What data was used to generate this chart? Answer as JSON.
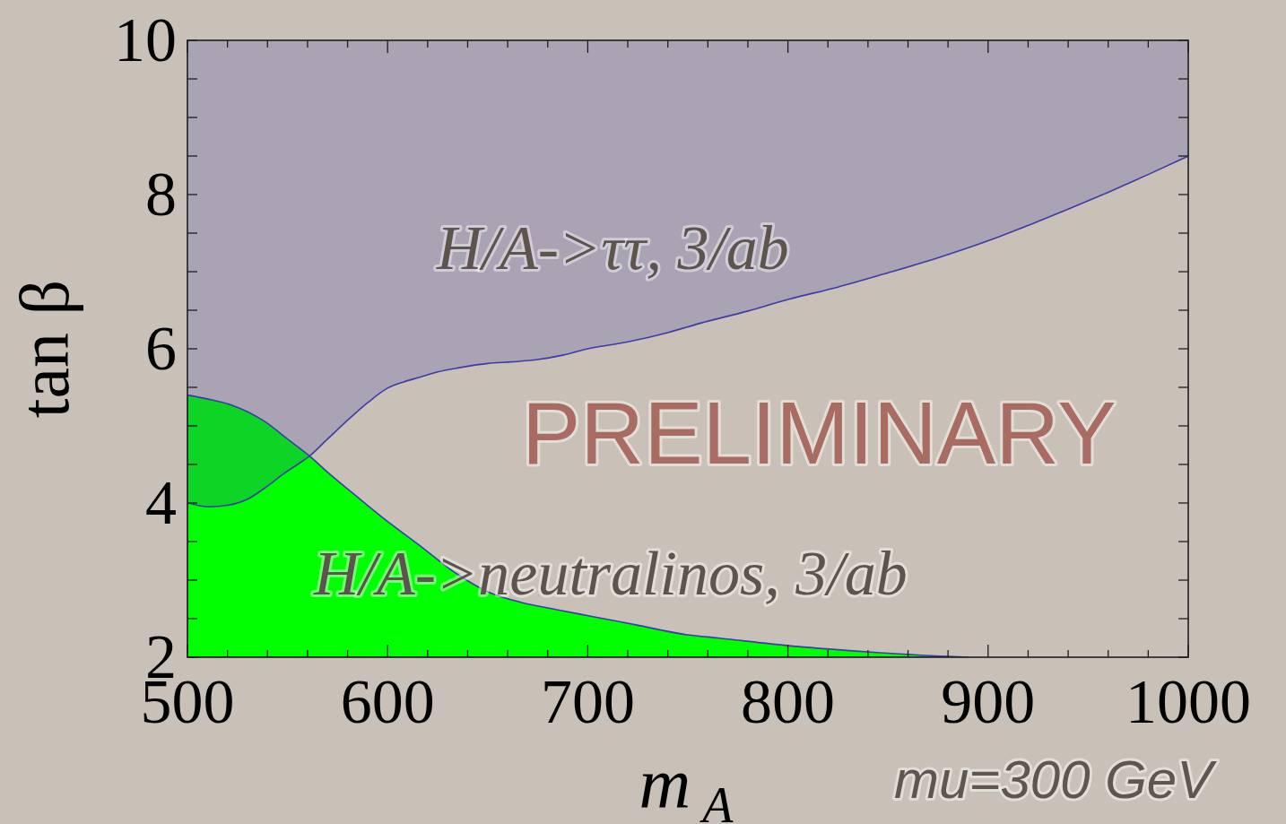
{
  "chart_data": {
    "type": "area",
    "xlabel": "m$_{A}$",
    "ylabel": "tan β",
    "xlim": [
      500,
      1000
    ],
    "ylim": [
      2,
      10
    ],
    "xticks": [
      500,
      {
        "value": 520,
        "label": null
      },
      {
        "value": 540,
        "label": null
      },
      {
        "value": 560,
        "label": null
      },
      {
        "value": 580,
        "label": null
      },
      600,
      {
        "value": 620,
        "label": null
      },
      {
        "value": 640,
        "label": null
      },
      {
        "value": 660,
        "label": null
      },
      {
        "value": 680,
        "label": null
      },
      700,
      {
        "value": 720,
        "label": null
      },
      {
        "value": 740,
        "label": null
      },
      {
        "value": 760,
        "label": null
      },
      {
        "value": 780,
        "label": null
      },
      800,
      {
        "value": 820,
        "label": null
      },
      {
        "value": 840,
        "label": null
      },
      {
        "value": 860,
        "label": null
      },
      {
        "value": 880,
        "label": null
      },
      900,
      {
        "value": 920,
        "label": null
      },
      {
        "value": 940,
        "label": null
      },
      {
        "value": 960,
        "label": null
      },
      {
        "value": 980,
        "label": null
      },
      1000
    ],
    "yticks": [
      2,
      {
        "value": 2.5,
        "label": null
      },
      {
        "value": 3,
        "label": null
      },
      {
        "value": 3.5,
        "label": null
      },
      4,
      {
        "value": 4.5,
        "label": null
      },
      {
        "value": 5,
        "label": null
      },
      {
        "value": 5.5,
        "label": null
      },
      6,
      {
        "value": 6.5,
        "label": null
      },
      {
        "value": 7,
        "label": null
      },
      {
        "value": 7.5,
        "label": null
      },
      8,
      {
        "value": 8.5,
        "label": null
      },
      {
        "value": 9,
        "label": null
      },
      {
        "value": 9.5,
        "label": null
      },
      10
    ],
    "annotations": [
      "PRELIMINARY",
      "mu=300 GeV"
    ],
    "series": [
      {
        "name": "H/A->neutralinos, 3/ab",
        "color": "#00ff00",
        "x": [
          500,
          510,
          522,
          539,
          550,
          561,
          570,
          582,
          599,
          616,
          633,
          650,
          667,
          684,
          702,
          724,
          750,
          765,
          800,
          840,
          880,
          890
        ],
        "values": [
          5.4,
          5.35,
          5.27,
          5.05,
          4.83,
          4.61,
          4.4,
          4.14,
          3.78,
          3.45,
          3.11,
          2.85,
          2.71,
          2.62,
          2.53,
          2.42,
          2.29,
          2.25,
          2.15,
          2.07,
          2.01,
          2.0
        ]
      },
      {
        "name": "H/A->ττ, 3/ab",
        "type": "line",
        "color": "#3c3ca8",
        "x": [
          500,
          511,
          520,
          530,
          540,
          547,
          555,
          561,
          570,
          582,
          590,
          600,
          608,
          616,
          625,
          637,
          650,
          662,
          675,
          688,
          700,
          720,
          740,
          756,
          780,
          800,
          825,
          848,
          875,
          900,
          920,
          940,
          960,
          980,
          1000
        ],
        "values": [
          4.0,
          3.95,
          3.97,
          4.05,
          4.22,
          4.36,
          4.5,
          4.61,
          4.83,
          5.12,
          5.3,
          5.49,
          5.57,
          5.63,
          5.7,
          5.76,
          5.81,
          5.83,
          5.86,
          5.92,
          6.0,
          6.09,
          6.21,
          6.33,
          6.49,
          6.64,
          6.8,
          6.97,
          7.18,
          7.4,
          7.6,
          7.81,
          8.03,
          8.26,
          8.5
        ],
        "lower": [
          4.0,
          3.95,
          3.97,
          4.05,
          4.22,
          4.36,
          4.5,
          4.61,
          4.83,
          5.12,
          5.3,
          5.49,
          5.57,
          5.63,
          5.7,
          5.76,
          5.81,
          5.83,
          5.86,
          5.92,
          6.0,
          6.09,
          6.21,
          6.33,
          6.49,
          6.64,
          6.8,
          6.97,
          7.18,
          7.4,
          7.6,
          7.81,
          8.03,
          8.26,
          8.5
        ],
        "upper": [
          10,
          10,
          10,
          10,
          10,
          10,
          10,
          10,
          10,
          10,
          10,
          10,
          10,
          10,
          10,
          10,
          10,
          10,
          10,
          10,
          10,
          10,
          10,
          10,
          10,
          10,
          10,
          10,
          10,
          10,
          10,
          10,
          10,
          10,
          10
        ]
      }
    ]
  }
}
